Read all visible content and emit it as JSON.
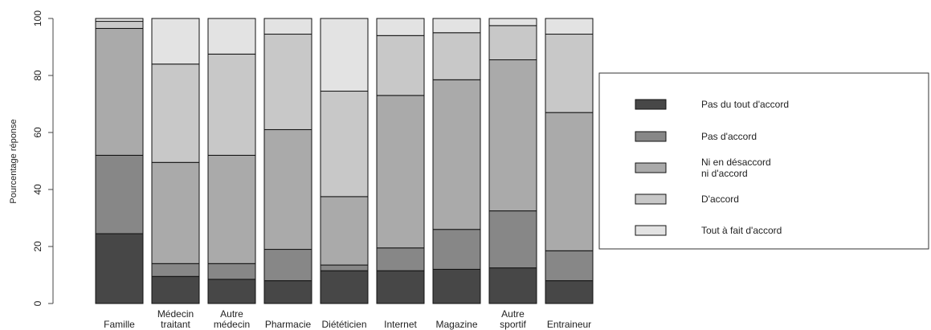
{
  "chart_data": {
    "type": "bar",
    "stacked": true,
    "orientation": "vertical",
    "categories": [
      [
        "Famille"
      ],
      [
        "Médecin",
        "traitant"
      ],
      [
        "Autre",
        "médecin"
      ],
      [
        "Pharmacie"
      ],
      [
        "Diététicien"
      ],
      [
        "Internet"
      ],
      [
        "Magazine"
      ],
      [
        "Autre",
        "sportif"
      ],
      [
        "Entraineur"
      ]
    ],
    "series": [
      {
        "name": "Pas du tout d'accord",
        "label_lines": [
          "Pas du tout d'accord"
        ],
        "color": "#474747",
        "values": [
          24.5,
          9.5,
          8.5,
          8.0,
          11.5,
          11.5,
          12.0,
          12.5,
          8.0
        ]
      },
      {
        "name": "Pas d'accord",
        "label_lines": [
          "Pas d'accord"
        ],
        "color": "#878787",
        "values": [
          27.5,
          4.5,
          5.5,
          11.0,
          2.0,
          8.0,
          14.0,
          20.0,
          10.5
        ]
      },
      {
        "name": "Ni en désaccord ni d'accord",
        "label_lines": [
          "Ni en désaccord",
          "ni d'accord"
        ],
        "color": "#aaaaaa",
        "values": [
          44.5,
          35.5,
          38.0,
          42.0,
          24.0,
          53.5,
          52.5,
          53.0,
          48.5
        ]
      },
      {
        "name": "D'accord",
        "label_lines": [
          "D'accord"
        ],
        "color": "#c8c8c8",
        "values": [
          2.5,
          34.5,
          35.5,
          33.5,
          37.0,
          21.0,
          16.5,
          12.0,
          27.5
        ]
      },
      {
        "name": "Tout à fait d'accord",
        "label_lines": [
          "Tout à fait d'accord"
        ],
        "color": "#e3e3e3",
        "values": [
          1.0,
          16.0,
          12.5,
          5.5,
          25.5,
          6.0,
          5.0,
          2.5,
          5.5
        ]
      }
    ],
    "ylabel": "Pourcentage réponse",
    "ylim": [
      0,
      100
    ],
    "yticks": [
      0,
      20,
      40,
      60,
      80,
      100
    ],
    "grid": false,
    "legend_position": "right"
  }
}
